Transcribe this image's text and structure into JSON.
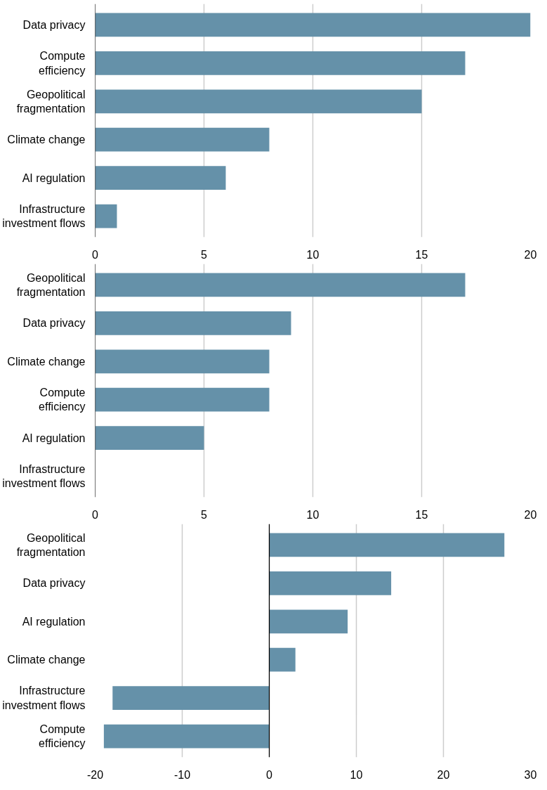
{
  "chart_data": [
    {
      "type": "bar",
      "orientation": "horizontal",
      "categories": [
        "Data privacy",
        "Compute\nefficiency",
        "Geopolitical\nfragmentation",
        "Climate change",
        "AI regulation",
        "Infrastructure\ninvestment flows"
      ],
      "values": [
        20,
        17,
        15,
        8,
        6,
        1
      ],
      "color": "#6591a9",
      "xlim": [
        0,
        20
      ],
      "xticks": [
        0,
        5,
        10,
        15,
        20
      ],
      "grid": "x"
    },
    {
      "type": "bar",
      "orientation": "horizontal",
      "categories": [
        "Geopolitical\nfragmentation",
        "Data privacy",
        "Climate change",
        "Compute\nefficiency",
        "AI regulation",
        "Infrastructure\ninvestment flows"
      ],
      "values": [
        17,
        9,
        8,
        8,
        5,
        0
      ],
      "color": "#6591a9",
      "xlim": [
        0,
        20
      ],
      "xticks": [
        0,
        5,
        10,
        15,
        20
      ],
      "grid": "x"
    },
    {
      "type": "bar",
      "orientation": "horizontal",
      "categories": [
        "Geopolitical\nfragmentation",
        "Data privacy",
        "AI regulation",
        "Climate change",
        "Infrastructure\ninvestment flows",
        "Compute\nefficiency"
      ],
      "values": [
        27,
        14,
        9,
        3,
        -18,
        -19
      ],
      "color": "#6591a9",
      "xlim": [
        -20,
        30
      ],
      "xticks": [
        -20,
        -10,
        0,
        10,
        20,
        30
      ],
      "grid": "x"
    }
  ]
}
